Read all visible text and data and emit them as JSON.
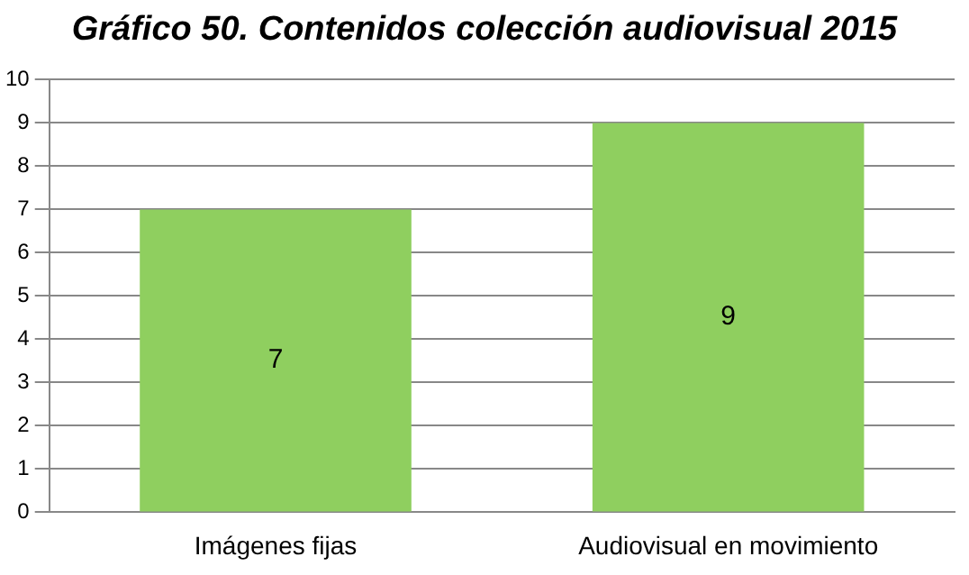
{
  "chart_data": {
    "type": "bar",
    "title": "Gráfico 50.  Contenidos colección audiovisual 2015",
    "categories": [
      "Imágenes fijas",
      "Audiovisual en movimiento"
    ],
    "values": [
      7,
      9
    ],
    "color": "#8fcf5f",
    "ylim": [
      0,
      10
    ],
    "yticks": [
      0,
      1,
      2,
      3,
      4,
      5,
      6,
      7,
      8,
      9,
      10
    ],
    "grid": "y",
    "data_labels": true
  }
}
